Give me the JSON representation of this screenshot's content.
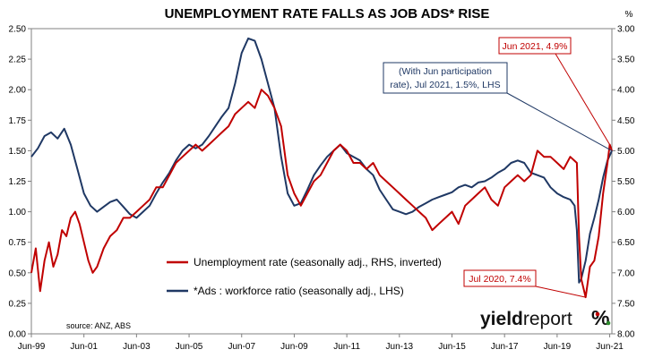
{
  "chart_data": {
    "type": "line",
    "title": "UNEMPLOYMENT RATE FALLS AS JOB ADS* RISE",
    "left_axis": {
      "unit": "",
      "ylim": [
        0,
        2.5
      ],
      "ticks": [
        "0.00",
        "0.25",
        "0.50",
        "0.75",
        "1.00",
        "1.25",
        "1.50",
        "1.75",
        "2.00",
        "2.25",
        "2.50"
      ]
    },
    "right_axis": {
      "unit": "%",
      "ylim": [
        8.0,
        3.0
      ],
      "inverted": true,
      "ticks": [
        "3.00",
        "3.50",
        "4.00",
        "4.50",
        "5.00",
        "5.50",
        "6.00",
        "6.50",
        "7.00",
        "7.50",
        "8.00"
      ]
    },
    "x_axis": {
      "range": [
        "1999-06",
        "2021-07"
      ],
      "ticks": [
        "Jun-99",
        "Jun-01",
        "Jun-03",
        "Jun-05",
        "Jun-07",
        "Jun-09",
        "Jun-11",
        "Jun-13",
        "Jun-15",
        "Jun-17",
        "Jun-19",
        "Jun-21"
      ]
    },
    "grid": false,
    "legend_position": "lower-middle",
    "series": [
      {
        "name": "Unemployment rate (seasonally adj., RHS, inverted)",
        "axis": "right",
        "color": "#c00000",
        "points": [
          [
            "1999-06",
            7.0
          ],
          [
            "1999-08",
            6.6
          ],
          [
            "1999-10",
            7.3
          ],
          [
            "1999-12",
            6.8
          ],
          [
            "2000-02",
            6.5
          ],
          [
            "2000-04",
            6.9
          ],
          [
            "2000-06",
            6.7
          ],
          [
            "2000-08",
            6.3
          ],
          [
            "2000-10",
            6.4
          ],
          [
            "2000-12",
            6.1
          ],
          [
            "2001-02",
            6.0
          ],
          [
            "2001-04",
            6.2
          ],
          [
            "2001-06",
            6.5
          ],
          [
            "2001-08",
            6.8
          ],
          [
            "2001-10",
            7.0
          ],
          [
            "2001-12",
            6.9
          ],
          [
            "2002-03",
            6.6
          ],
          [
            "2002-06",
            6.4
          ],
          [
            "2002-09",
            6.3
          ],
          [
            "2002-12",
            6.1
          ],
          [
            "2003-03",
            6.1
          ],
          [
            "2003-06",
            6.0
          ],
          [
            "2003-09",
            5.9
          ],
          [
            "2003-12",
            5.8
          ],
          [
            "2004-03",
            5.6
          ],
          [
            "2004-06",
            5.6
          ],
          [
            "2004-09",
            5.4
          ],
          [
            "2004-12",
            5.2
          ],
          [
            "2005-03",
            5.1
          ],
          [
            "2005-06",
            5.0
          ],
          [
            "2005-09",
            4.9
          ],
          [
            "2005-12",
            5.0
          ],
          [
            "2006-03",
            4.9
          ],
          [
            "2006-06",
            4.8
          ],
          [
            "2006-09",
            4.7
          ],
          [
            "2006-12",
            4.6
          ],
          [
            "2007-03",
            4.4
          ],
          [
            "2007-06",
            4.3
          ],
          [
            "2007-09",
            4.2
          ],
          [
            "2007-12",
            4.3
          ],
          [
            "2008-03",
            4.0
          ],
          [
            "2008-06",
            4.1
          ],
          [
            "2008-09",
            4.3
          ],
          [
            "2008-12",
            4.6
          ],
          [
            "2009-03",
            5.4
          ],
          [
            "2009-06",
            5.7
          ],
          [
            "2009-09",
            5.9
          ],
          [
            "2009-12",
            5.7
          ],
          [
            "2010-03",
            5.5
          ],
          [
            "2010-06",
            5.4
          ],
          [
            "2010-09",
            5.2
          ],
          [
            "2010-12",
            5.0
          ],
          [
            "2011-03",
            4.9
          ],
          [
            "2011-06",
            5.0
          ],
          [
            "2011-09",
            5.2
          ],
          [
            "2011-12",
            5.2
          ],
          [
            "2012-03",
            5.3
          ],
          [
            "2012-06",
            5.2
          ],
          [
            "2012-09",
            5.4
          ],
          [
            "2012-12",
            5.5
          ],
          [
            "2013-03",
            5.6
          ],
          [
            "2013-06",
            5.7
          ],
          [
            "2013-09",
            5.8
          ],
          [
            "2013-12",
            5.9
          ],
          [
            "2014-03",
            6.0
          ],
          [
            "2014-06",
            6.1
          ],
          [
            "2014-09",
            6.3
          ],
          [
            "2014-12",
            6.2
          ],
          [
            "2015-03",
            6.1
          ],
          [
            "2015-06",
            6.0
          ],
          [
            "2015-09",
            6.2
          ],
          [
            "2015-12",
            5.9
          ],
          [
            "2016-03",
            5.8
          ],
          [
            "2016-06",
            5.7
          ],
          [
            "2016-09",
            5.6
          ],
          [
            "2016-12",
            5.8
          ],
          [
            "2017-03",
            5.9
          ],
          [
            "2017-06",
            5.6
          ],
          [
            "2017-09",
            5.5
          ],
          [
            "2017-12",
            5.4
          ],
          [
            "2018-03",
            5.5
          ],
          [
            "2018-06",
            5.4
          ],
          [
            "2018-09",
            5.0
          ],
          [
            "2018-12",
            5.1
          ],
          [
            "2019-03",
            5.1
          ],
          [
            "2019-06",
            5.2
          ],
          [
            "2019-09",
            5.3
          ],
          [
            "2019-12",
            5.1
          ],
          [
            "2020-03",
            5.2
          ],
          [
            "2020-04",
            6.4
          ],
          [
            "2020-05",
            7.1
          ],
          [
            "2020-07",
            7.4
          ],
          [
            "2020-09",
            6.9
          ],
          [
            "2020-11",
            6.8
          ],
          [
            "2021-01",
            6.4
          ],
          [
            "2021-03",
            5.7
          ],
          [
            "2021-05",
            5.2
          ],
          [
            "2021-06",
            4.9
          ],
          [
            "2021-07",
            5.0
          ]
        ]
      },
      {
        "name": "*Ads : workforce ratio (seasonally adj., LHS)",
        "axis": "left",
        "color": "#1f3864",
        "points": [
          [
            "1999-06",
            1.45
          ],
          [
            "1999-09",
            1.52
          ],
          [
            "1999-12",
            1.62
          ],
          [
            "2000-03",
            1.65
          ],
          [
            "2000-06",
            1.6
          ],
          [
            "2000-09",
            1.68
          ],
          [
            "2000-12",
            1.55
          ],
          [
            "2001-03",
            1.35
          ],
          [
            "2001-06",
            1.15
          ],
          [
            "2001-09",
            1.05
          ],
          [
            "2001-12",
            1.0
          ],
          [
            "2002-03",
            1.04
          ],
          [
            "2002-06",
            1.08
          ],
          [
            "2002-09",
            1.1
          ],
          [
            "2002-12",
            1.04
          ],
          [
            "2003-03",
            0.98
          ],
          [
            "2003-06",
            0.95
          ],
          [
            "2003-09",
            1.0
          ],
          [
            "2003-12",
            1.05
          ],
          [
            "2004-03",
            1.15
          ],
          [
            "2004-06",
            1.24
          ],
          [
            "2004-09",
            1.32
          ],
          [
            "2004-12",
            1.42
          ],
          [
            "2005-03",
            1.5
          ],
          [
            "2005-06",
            1.55
          ],
          [
            "2005-09",
            1.52
          ],
          [
            "2005-12",
            1.55
          ],
          [
            "2006-03",
            1.62
          ],
          [
            "2006-06",
            1.7
          ],
          [
            "2006-09",
            1.78
          ],
          [
            "2006-12",
            1.85
          ],
          [
            "2007-03",
            2.05
          ],
          [
            "2007-06",
            2.3
          ],
          [
            "2007-09",
            2.42
          ],
          [
            "2007-12",
            2.4
          ],
          [
            "2008-03",
            2.25
          ],
          [
            "2008-06",
            2.05
          ],
          [
            "2008-09",
            1.85
          ],
          [
            "2008-12",
            1.45
          ],
          [
            "2009-03",
            1.15
          ],
          [
            "2009-06",
            1.05
          ],
          [
            "2009-09",
            1.07
          ],
          [
            "2009-12",
            1.18
          ],
          [
            "2010-03",
            1.3
          ],
          [
            "2010-06",
            1.38
          ],
          [
            "2010-09",
            1.45
          ],
          [
            "2010-12",
            1.5
          ],
          [
            "2011-03",
            1.55
          ],
          [
            "2011-06",
            1.48
          ],
          [
            "2011-09",
            1.45
          ],
          [
            "2011-12",
            1.42
          ],
          [
            "2012-03",
            1.35
          ],
          [
            "2012-06",
            1.3
          ],
          [
            "2012-09",
            1.18
          ],
          [
            "2012-12",
            1.1
          ],
          [
            "2013-03",
            1.02
          ],
          [
            "2013-06",
            1.0
          ],
          [
            "2013-09",
            0.98
          ],
          [
            "2013-12",
            1.0
          ],
          [
            "2014-03",
            1.04
          ],
          [
            "2014-06",
            1.07
          ],
          [
            "2014-09",
            1.1
          ],
          [
            "2014-12",
            1.12
          ],
          [
            "2015-03",
            1.14
          ],
          [
            "2015-06",
            1.16
          ],
          [
            "2015-09",
            1.2
          ],
          [
            "2015-12",
            1.22
          ],
          [
            "2016-03",
            1.2
          ],
          [
            "2016-06",
            1.24
          ],
          [
            "2016-09",
            1.25
          ],
          [
            "2016-12",
            1.28
          ],
          [
            "2017-03",
            1.32
          ],
          [
            "2017-06",
            1.35
          ],
          [
            "2017-09",
            1.4
          ],
          [
            "2017-12",
            1.42
          ],
          [
            "2018-03",
            1.4
          ],
          [
            "2018-06",
            1.32
          ],
          [
            "2018-09",
            1.3
          ],
          [
            "2018-12",
            1.28
          ],
          [
            "2019-03",
            1.2
          ],
          [
            "2019-06",
            1.15
          ],
          [
            "2019-09",
            1.12
          ],
          [
            "2019-12",
            1.1
          ],
          [
            "2020-02",
            1.05
          ],
          [
            "2020-03",
            0.85
          ],
          [
            "2020-04",
            0.42
          ],
          [
            "2020-05",
            0.45
          ],
          [
            "2020-07",
            0.6
          ],
          [
            "2020-09",
            0.82
          ],
          [
            "2020-11",
            0.95
          ],
          [
            "2021-01",
            1.1
          ],
          [
            "2021-03",
            1.28
          ],
          [
            "2021-05",
            1.42
          ],
          [
            "2021-07",
            1.5
          ]
        ]
      }
    ],
    "annotations": [
      {
        "text": "Jun 2021, 4.9%",
        "color": "#c00000",
        "point": [
          "2021-06",
          4.9
        ],
        "axis": "right"
      },
      {
        "text_lines": [
          "(With Jun participation",
          "rate), Jul 2021, 1.5%, LHS"
        ],
        "color": "#1f3864",
        "point": [
          "2021-07",
          1.5
        ],
        "axis": "left"
      },
      {
        "text": "Jul 2020, 7.4%",
        "color": "#c00000",
        "point": [
          "2020-07",
          7.4
        ],
        "axis": "right"
      }
    ],
    "source": "source: ANZ, ABS"
  },
  "logo": {
    "part1": "yield",
    "part2": "report",
    "symbol": "%"
  }
}
